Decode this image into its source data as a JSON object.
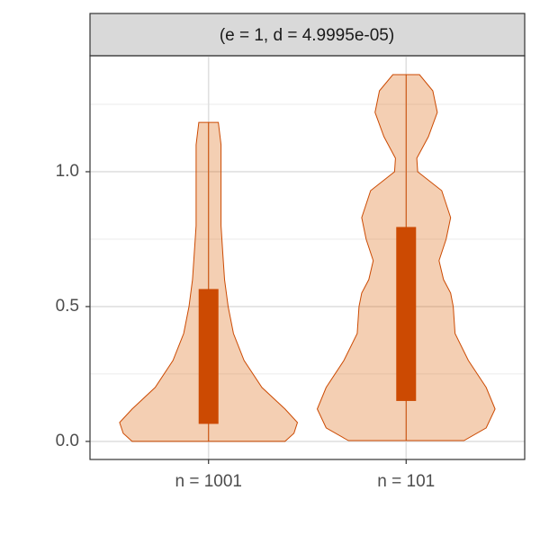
{
  "chart_data": {
    "type": "violin",
    "strip": "(e = 1, d = 4.9995e-05)",
    "categories": [
      "n = 1001",
      "n = 101"
    ],
    "fill": "#d95f02",
    "fill_opacity": 0.3,
    "color": "#cc4a02",
    "violins": [
      {
        "y": [
          0,
          0.03,
          0.07,
          0.12,
          0.2,
          0.3,
          0.4,
          0.5,
          0.6,
          0.7,
          0.8,
          0.9,
          1.0,
          1.1,
          1.183
        ],
        "width": [
          0.86,
          0.96,
          1.0,
          0.86,
          0.6,
          0.4,
          0.28,
          0.22,
          0.18,
          0.16,
          0.14,
          0.14,
          0.14,
          0.14,
          0.11
        ],
        "min": 0,
        "q1": 0.065,
        "q3": 0.565,
        "max": 1.183
      },
      {
        "y": [
          0.003,
          0.05,
          0.12,
          0.2,
          0.3,
          0.4,
          0.5,
          0.55,
          0.6,
          0.67,
          0.75,
          0.83,
          0.93,
          1.0,
          1.05,
          1.13,
          1.22,
          1.3,
          1.36
        ],
        "width": [
          0.65,
          0.9,
          1.0,
          0.9,
          0.7,
          0.55,
          0.53,
          0.5,
          0.42,
          0.37,
          0.45,
          0.5,
          0.4,
          0.13,
          0.12,
          0.25,
          0.35,
          0.3,
          0.15
        ],
        "min": 0.003,
        "q1": 0.15,
        "q3": 0.795,
        "max": 1.36
      }
    ],
    "ylim": [
      -0.067,
      1.43
    ],
    "yticks": [
      {
        "value": 0,
        "label": "0.0"
      },
      0.5,
      {
        "value": 1,
        "label": "1.0"
      }
    ],
    "minor_yticks": [
      0.25,
      0.75,
      1.25
    ],
    "grid": true
  }
}
